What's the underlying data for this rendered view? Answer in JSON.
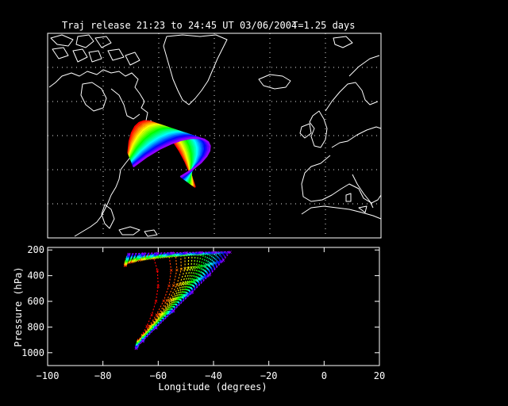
{
  "title": "Traj release 21:23 to 24:45 UT 03/06/2004",
  "elapsed": "T=1.25 days",
  "map_panel": {
    "lon_range": [
      -100,
      20
    ],
    "lat_range": [
      20,
      80
    ],
    "gridlines": "dotted"
  },
  "chart_data": {
    "type": "scatter",
    "title": "",
    "xlabel": "Longitude  (degrees)",
    "ylabel": "Pressure  (hPa)",
    "xlim": [
      -100,
      20
    ],
    "ylim": [
      1100,
      180
    ],
    "x_ticks": [
      "−100",
      "−80",
      "−60",
      "−40",
      "−20",
      "0",
      "20"
    ],
    "y_ticks": [
      "200",
      "400",
      "600",
      "800",
      "1000"
    ],
    "color_by": "release order (red → orange → yellow → green → cyan → blue → violet)",
    "trajectories_summary": {
      "count": 24,
      "start_longitude_range": [
        -72,
        -70
      ],
      "start_pressure_range": [
        230,
        320
      ],
      "lowest_pressure_longitude": -34,
      "lowest_pressure_hPa": 215,
      "final_longitude_range": [
        -68,
        -67
      ],
      "final_pressure_range": [
        900,
        980
      ]
    }
  }
}
